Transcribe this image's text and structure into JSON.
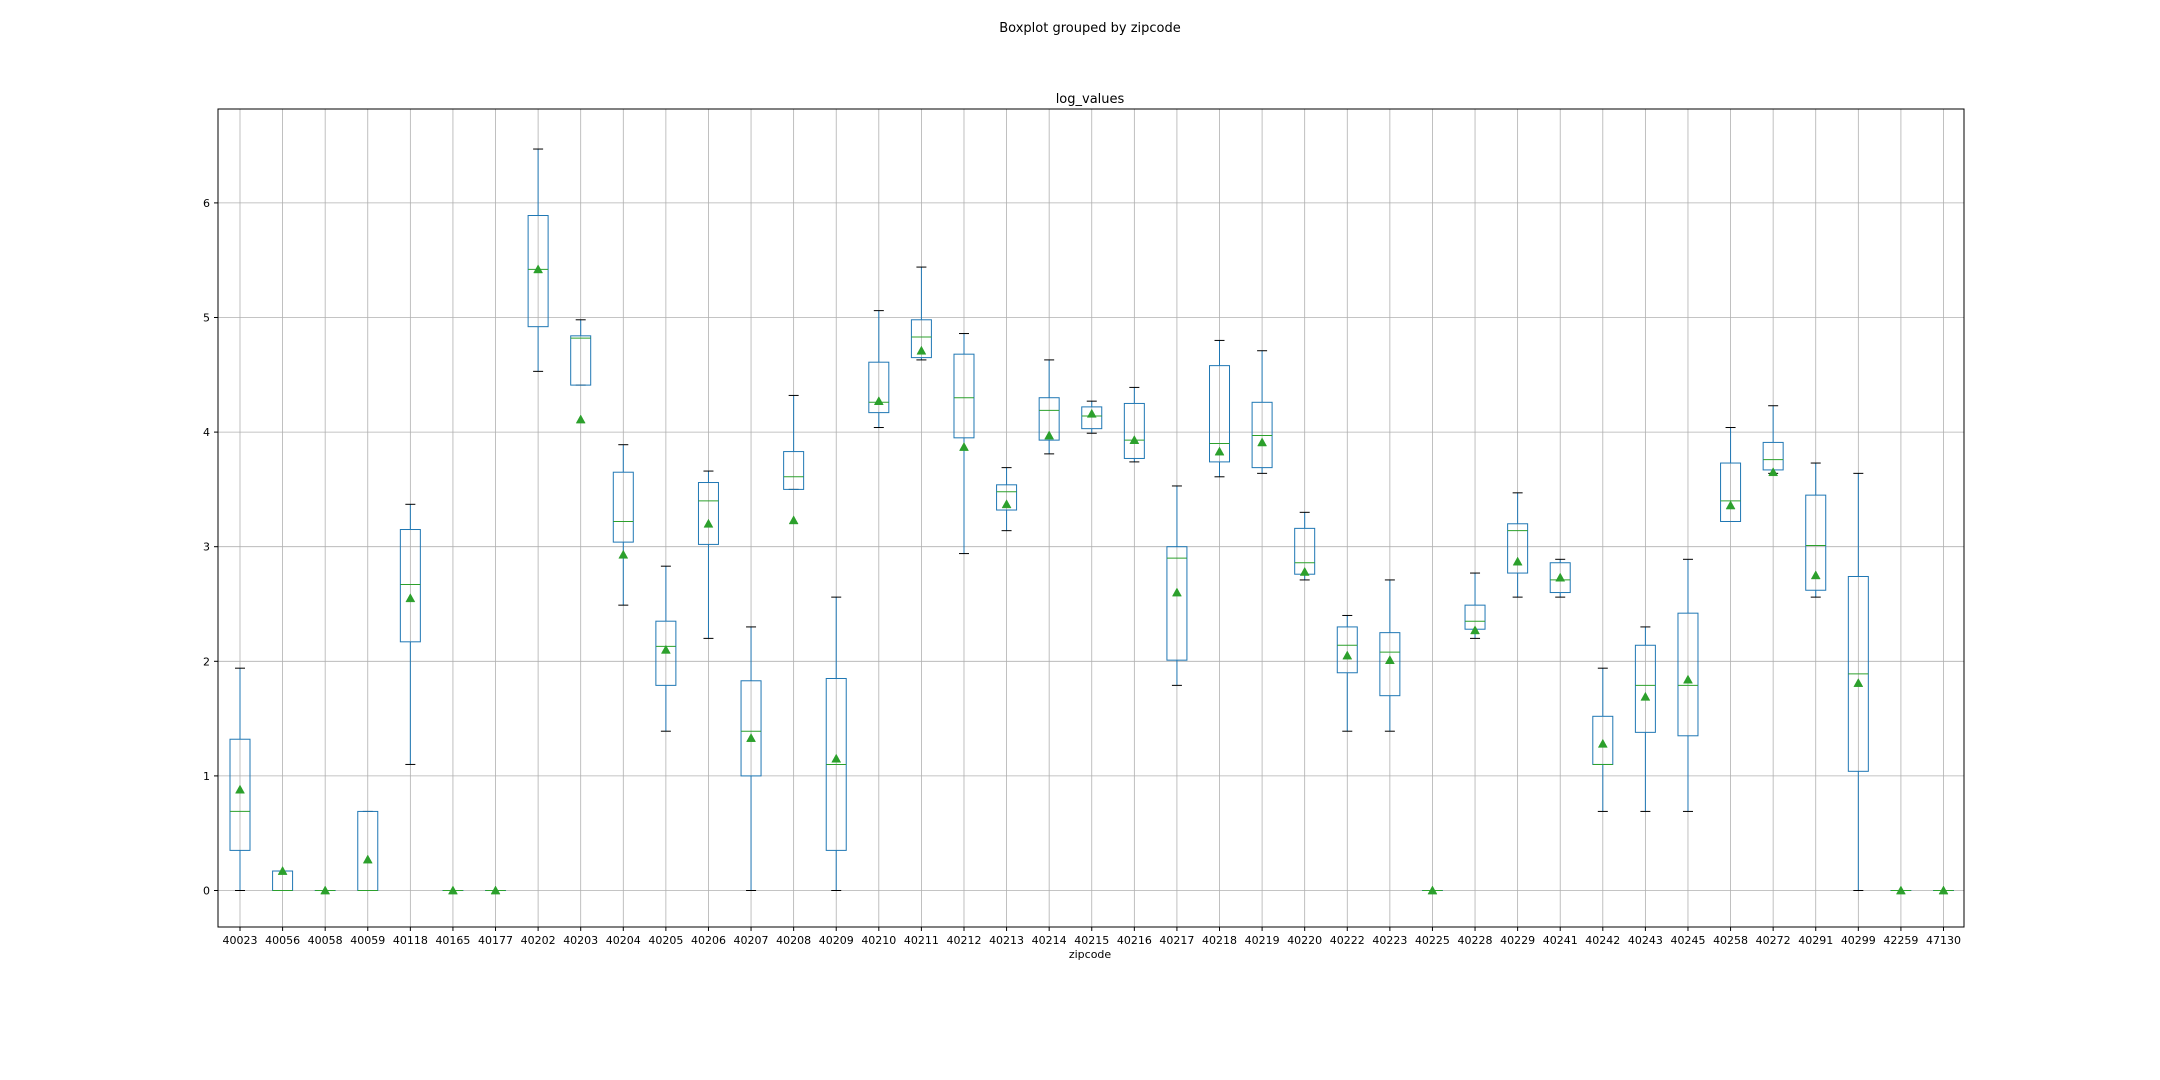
{
  "chart_data": {
    "type": "boxplot",
    "suptitle": "Boxplot grouped by zipcode",
    "title": "log_values",
    "xlabel": "zipcode",
    "ylabel": "",
    "ylim": [
      -0.33,
      6.8
    ],
    "yticks": [
      0,
      1,
      2,
      3,
      4,
      5,
      6
    ],
    "grid": true,
    "legend": "none",
    "colors": {
      "box": "#1f77b4",
      "median": "#2ca02c",
      "mean": "#2ca02c",
      "grid": "#b0b0b0"
    },
    "categories": [
      "40023",
      "40056",
      "40058",
      "40059",
      "40118",
      "40165",
      "40177",
      "40202",
      "40203",
      "40204",
      "40205",
      "40206",
      "40207",
      "40208",
      "40209",
      "40210",
      "40211",
      "40212",
      "40213",
      "40214",
      "40215",
      "40216",
      "40217",
      "40218",
      "40219",
      "40220",
      "40222",
      "40223",
      "40225",
      "40228",
      "40229",
      "40241",
      "40242",
      "40243",
      "40245",
      "40258",
      "40272",
      "40291",
      "40299",
      "42259",
      "47130"
    ],
    "boxes": [
      {
        "whislo": 0.0,
        "q1": 0.35,
        "med": 0.69,
        "q3": 1.32,
        "whishi": 1.94,
        "mean": 0.88
      },
      {
        "whislo": 0.0,
        "q1": 0.0,
        "med": 0.0,
        "q3": 0.17,
        "whishi": 0.17,
        "mean": 0.17
      },
      {
        "whislo": 0.0,
        "q1": 0.0,
        "med": 0.0,
        "q3": 0.0,
        "whishi": 0.0,
        "mean": 0.0
      },
      {
        "whislo": 0.0,
        "q1": 0.0,
        "med": 0.0,
        "q3": 0.69,
        "whishi": 0.69,
        "mean": 0.27
      },
      {
        "whislo": 1.1,
        "q1": 2.17,
        "med": 2.67,
        "q3": 3.15,
        "whishi": 3.37,
        "mean": 2.55
      },
      {
        "whislo": 0.0,
        "q1": 0.0,
        "med": 0.0,
        "q3": 0.0,
        "whishi": 0.0,
        "mean": 0.0
      },
      {
        "whislo": 0.0,
        "q1": 0.0,
        "med": 0.0,
        "q3": 0.0,
        "whishi": 0.0,
        "mean": 0.0
      },
      {
        "whislo": 4.53,
        "q1": 4.92,
        "med": 5.42,
        "q3": 5.89,
        "whishi": 6.47,
        "mean": 5.42
      },
      {
        "whislo": 4.41,
        "q1": 4.41,
        "med": 4.82,
        "q3": 4.84,
        "whishi": 4.98,
        "mean": 4.11
      },
      {
        "whislo": 2.49,
        "q1": 3.04,
        "med": 3.22,
        "q3": 3.65,
        "whishi": 3.89,
        "mean": 2.93
      },
      {
        "whislo": 1.39,
        "q1": 1.79,
        "med": 2.13,
        "q3": 2.35,
        "whishi": 2.83,
        "mean": 2.1
      },
      {
        "whislo": 2.2,
        "q1": 3.02,
        "med": 3.4,
        "q3": 3.56,
        "whishi": 3.66,
        "mean": 3.2
      },
      {
        "whislo": 0.0,
        "q1": 1.0,
        "med": 1.39,
        "q3": 1.83,
        "whishi": 2.3,
        "mean": 1.33
      },
      {
        "whislo": 3.5,
        "q1": 3.5,
        "med": 3.61,
        "q3": 3.83,
        "whishi": 4.32,
        "mean": 3.23
      },
      {
        "whislo": 0.0,
        "q1": 0.35,
        "med": 1.1,
        "q3": 1.85,
        "whishi": 2.56,
        "mean": 1.15
      },
      {
        "whislo": 4.04,
        "q1": 4.17,
        "med": 4.26,
        "q3": 4.61,
        "whishi": 5.06,
        "mean": 4.27
      },
      {
        "whislo": 4.63,
        "q1": 4.65,
        "med": 4.83,
        "q3": 4.98,
        "whishi": 5.44,
        "mean": 4.71
      },
      {
        "whislo": 2.94,
        "q1": 3.95,
        "med": 4.3,
        "q3": 4.68,
        "whishi": 4.86,
        "mean": 3.87
      },
      {
        "whislo": 3.14,
        "q1": 3.32,
        "med": 3.48,
        "q3": 3.54,
        "whishi": 3.69,
        "mean": 3.37
      },
      {
        "whislo": 3.81,
        "q1": 3.93,
        "med": 4.19,
        "q3": 4.3,
        "whishi": 4.63,
        "mean": 3.97
      },
      {
        "whislo": 3.99,
        "q1": 4.03,
        "med": 4.14,
        "q3": 4.22,
        "whishi": 4.27,
        "mean": 4.16
      },
      {
        "whislo": 3.74,
        "q1": 3.77,
        "med": 3.93,
        "q3": 4.25,
        "whishi": 4.39,
        "mean": 3.93
      },
      {
        "whislo": 1.79,
        "q1": 2.01,
        "med": 2.9,
        "q3": 3.0,
        "whishi": 3.53,
        "mean": 2.6
      },
      {
        "whislo": 3.61,
        "q1": 3.74,
        "med": 3.9,
        "q3": 4.58,
        "whishi": 4.8,
        "mean": 3.83
      },
      {
        "whislo": 3.64,
        "q1": 3.69,
        "med": 3.97,
        "q3": 4.26,
        "whishi": 4.71,
        "mean": 3.91
      },
      {
        "whislo": 2.71,
        "q1": 2.76,
        "med": 2.86,
        "q3": 3.16,
        "whishi": 3.3,
        "mean": 2.78
      },
      {
        "whislo": 1.39,
        "q1": 1.9,
        "med": 2.14,
        "q3": 2.3,
        "whishi": 2.4,
        "mean": 2.05
      },
      {
        "whislo": 1.39,
        "q1": 1.7,
        "med": 2.08,
        "q3": 2.25,
        "whishi": 2.71,
        "mean": 2.01
      },
      {
        "whislo": 0.0,
        "q1": 0.0,
        "med": 0.0,
        "q3": 0.0,
        "whishi": 0.0,
        "mean": 0.0
      },
      {
        "whislo": 2.2,
        "q1": 2.28,
        "med": 2.35,
        "q3": 2.49,
        "whishi": 2.77,
        "mean": 2.27
      },
      {
        "whislo": 2.56,
        "q1": 2.77,
        "med": 3.14,
        "q3": 3.2,
        "whishi": 3.47,
        "mean": 2.87
      },
      {
        "whislo": 2.56,
        "q1": 2.6,
        "med": 2.71,
        "q3": 2.86,
        "whishi": 2.89,
        "mean": 2.73
      },
      {
        "whislo": 0.69,
        "q1": 1.1,
        "med": 1.1,
        "q3": 1.52,
        "whishi": 1.94,
        "mean": 1.28
      },
      {
        "whislo": 0.69,
        "q1": 1.38,
        "med": 1.79,
        "q3": 2.14,
        "whishi": 2.3,
        "mean": 1.69
      },
      {
        "whislo": 0.69,
        "q1": 1.35,
        "med": 1.79,
        "q3": 2.42,
        "whishi": 2.89,
        "mean": 1.84
      },
      {
        "whislo": 3.22,
        "q1": 3.22,
        "med": 3.4,
        "q3": 3.73,
        "whishi": 4.04,
        "mean": 3.36
      },
      {
        "whislo": 3.64,
        "q1": 3.67,
        "med": 3.76,
        "q3": 3.91,
        "whishi": 4.23,
        "mean": 3.65
      },
      {
        "whislo": 2.56,
        "q1": 2.62,
        "med": 3.01,
        "q3": 3.45,
        "whishi": 3.73,
        "mean": 2.75
      },
      {
        "whislo": 0.0,
        "q1": 1.04,
        "med": 1.89,
        "q3": 2.74,
        "whishi": 3.64,
        "mean": 1.81
      },
      {
        "whislo": 0.0,
        "q1": 0.0,
        "med": 0.0,
        "q3": 0.0,
        "whishi": 0.0,
        "mean": 0.0
      },
      {
        "whislo": 0.0,
        "q1": 0.0,
        "med": 0.0,
        "q3": 0.0,
        "whishi": 0.0,
        "mean": 0.0
      }
    ]
  }
}
